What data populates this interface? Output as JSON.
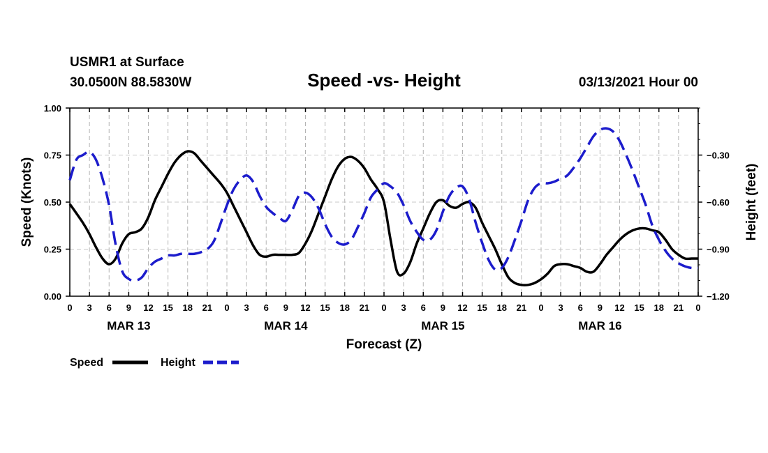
{
  "header": {
    "station": "USMR1 at Surface",
    "location": "30.0500N 88.5830W",
    "title": "Speed -vs- Height",
    "date": "03/13/2021 Hour 00"
  },
  "legend": {
    "speed_label": "Speed",
    "height_label": "Height"
  },
  "chart_data": {
    "type": "line",
    "title": "Speed -vs- Height",
    "xlabel": "Forecast (Z)",
    "ylabel": "Speed (Knots)",
    "y2label": "Height (feet)",
    "ylim": [
      0,
      1
    ],
    "y2lim": [
      -1.2,
      0
    ],
    "grid": true,
    "legend_position": "bottom-left",
    "x_range_hours": [
      0,
      96
    ],
    "x_tick_step_hours": 3,
    "x_tick_labels": [
      "0",
      "3",
      "6",
      "9",
      "12",
      "15",
      "18",
      "21",
      "0",
      "3",
      "6",
      "9",
      "12",
      "15",
      "18",
      "21",
      "0",
      "3",
      "6",
      "9",
      "12",
      "15",
      "18",
      "21",
      "0",
      "3",
      "6",
      "9",
      "12",
      "15",
      "18",
      "21",
      "0"
    ],
    "day_labels": [
      {
        "label": "MAR 13",
        "hour": 9
      },
      {
        "label": "MAR 14",
        "hour": 33
      },
      {
        "label": "MAR 15",
        "hour": 57
      },
      {
        "label": "MAR 16",
        "hour": 81
      }
    ],
    "y_ticks": [
      "0.00",
      "0.25",
      "0.50",
      "0.75",
      "1.00"
    ],
    "y2_ticks": [
      {
        "label": "−1.20",
        "value": -1.2
      },
      {
        "label": "−0.90",
        "value": -0.9
      },
      {
        "label": "−0.60",
        "value": -0.6
      },
      {
        "label": "−0.30",
        "value": -0.3
      }
    ],
    "series": [
      {
        "name": "Speed",
        "axis": "left",
        "color": "#000000",
        "dash": "solid",
        "x": [
          0,
          2,
          3,
          4,
          5,
          6,
          7,
          8,
          9,
          10,
          11,
          12,
          13,
          14,
          15,
          16,
          17,
          18,
          19,
          20,
          21,
          22,
          23,
          24,
          25,
          26,
          27,
          28,
          29,
          30,
          31,
          32,
          33,
          34,
          35,
          36,
          37,
          38,
          39,
          40,
          41,
          42,
          43,
          44,
          45,
          46,
          47,
          48,
          49,
          50,
          51,
          52,
          53,
          54,
          55,
          56,
          57,
          58,
          59,
          60,
          61,
          62,
          63,
          64,
          65,
          66,
          67,
          68,
          69,
          70,
          71,
          72,
          73,
          74,
          75,
          76,
          77,
          78,
          79,
          80,
          81,
          82,
          83,
          84,
          85,
          86,
          87,
          88,
          89,
          90,
          91,
          92,
          93,
          94,
          95,
          96
        ],
        "y": [
          0.49,
          0.39,
          0.33,
          0.26,
          0.2,
          0.17,
          0.2,
          0.28,
          0.33,
          0.34,
          0.36,
          0.42,
          0.51,
          0.58,
          0.65,
          0.71,
          0.75,
          0.77,
          0.76,
          0.72,
          0.68,
          0.64,
          0.6,
          0.55,
          0.48,
          0.41,
          0.34,
          0.27,
          0.22,
          0.21,
          0.22,
          0.22,
          0.22,
          0.22,
          0.23,
          0.28,
          0.35,
          0.44,
          0.53,
          0.62,
          0.69,
          0.73,
          0.74,
          0.72,
          0.68,
          0.62,
          0.57,
          0.5,
          0.3,
          0.13,
          0.12,
          0.18,
          0.28,
          0.36,
          0.44,
          0.5,
          0.51,
          0.48,
          0.47,
          0.49,
          0.5,
          0.47,
          0.39,
          0.32,
          0.25,
          0.17,
          0.1,
          0.07,
          0.06,
          0.06,
          0.07,
          0.09,
          0.12,
          0.16,
          0.17,
          0.17,
          0.16,
          0.15,
          0.13,
          0.13,
          0.17,
          0.22,
          0.26,
          0.3,
          0.33,
          0.35,
          0.36,
          0.36,
          0.35,
          0.34,
          0.3,
          0.25,
          0.22,
          0.2,
          0.2,
          0.2
        ]
      },
      {
        "name": "Height",
        "axis": "right",
        "color": "#1c1ccc",
        "dash": "dashed",
        "x": [
          0,
          1,
          2,
          3,
          4,
          5,
          6,
          7,
          8,
          9,
          10,
          11,
          12,
          13,
          14,
          15,
          16,
          17,
          18,
          19,
          20,
          21,
          22,
          23,
          24,
          25,
          26,
          27,
          28,
          29,
          30,
          31,
          32,
          33,
          34,
          35,
          36,
          37,
          38,
          39,
          40,
          41,
          42,
          43,
          44,
          45,
          46,
          47,
          48,
          49,
          50,
          51,
          52,
          53,
          54,
          55,
          56,
          57,
          58,
          59,
          60,
          61,
          62,
          63,
          64,
          65,
          66,
          67,
          68,
          69,
          70,
          71,
          72,
          73,
          74,
          75,
          76,
          77,
          78,
          79,
          80,
          81,
          82,
          83,
          84,
          85,
          86,
          87,
          88,
          89,
          90,
          91,
          92,
          93,
          94,
          95,
          96
        ],
        "y": [
          -0.46,
          -0.33,
          -0.3,
          -0.28,
          -0.33,
          -0.45,
          -0.62,
          -0.87,
          -1.04,
          -1.09,
          -1.1,
          -1.08,
          -1.02,
          -0.98,
          -0.96,
          -0.94,
          -0.94,
          -0.93,
          -0.93,
          -0.93,
          -0.92,
          -0.9,
          -0.85,
          -0.74,
          -0.62,
          -0.52,
          -0.46,
          -0.43,
          -0.47,
          -0.56,
          -0.63,
          -0.67,
          -0.7,
          -0.72,
          -0.65,
          -0.56,
          -0.54,
          -0.57,
          -0.64,
          -0.74,
          -0.82,
          -0.86,
          -0.87,
          -0.84,
          -0.76,
          -0.67,
          -0.57,
          -0.52,
          -0.48,
          -0.5,
          -0.54,
          -0.62,
          -0.72,
          -0.79,
          -0.84,
          -0.84,
          -0.78,
          -0.66,
          -0.56,
          -0.51,
          -0.5,
          -0.58,
          -0.73,
          -0.86,
          -0.97,
          -1.03,
          -1.02,
          -0.95,
          -0.84,
          -0.72,
          -0.59,
          -0.51,
          -0.48,
          -0.48,
          -0.47,
          -0.45,
          -0.43,
          -0.38,
          -0.32,
          -0.25,
          -0.18,
          -0.14,
          -0.13,
          -0.15,
          -0.21,
          -0.3,
          -0.4,
          -0.51,
          -0.62,
          -0.75,
          -0.84,
          -0.91,
          -0.96,
          -0.99,
          -1.01,
          -1.02,
          -1.02
        ]
      }
    ]
  }
}
